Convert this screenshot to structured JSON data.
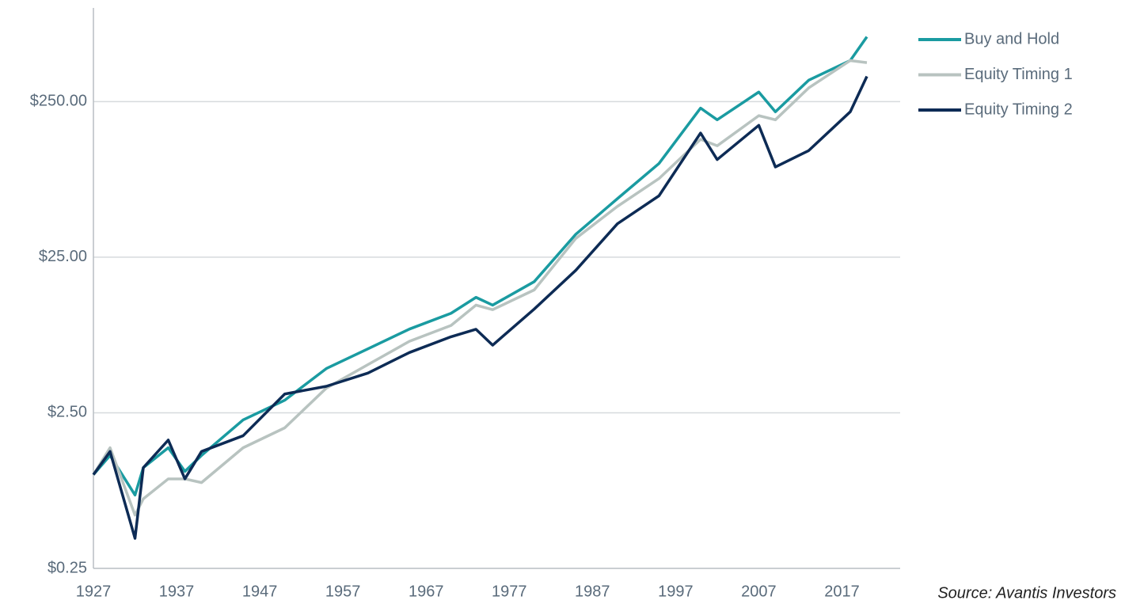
{
  "chart_data": {
    "type": "line",
    "source": "Source: Avantis Investors",
    "log_y": true,
    "grid": true,
    "legend": "top-right",
    "xlim": [
      1927,
      2024
    ],
    "xticks": [
      1927,
      1937,
      1947,
      1957,
      1967,
      1977,
      1987,
      1997,
      2007,
      2017
    ],
    "ylim": [
      0.25,
      1000
    ],
    "yticks": [
      {
        "value": 0.25,
        "label": "$0.25"
      },
      {
        "value": 2.5,
        "label": "$2.50"
      },
      {
        "value": 25,
        "label": "$25.00"
      },
      {
        "value": 250,
        "label": "$250.00"
      }
    ],
    "x": [
      1927,
      1929,
      1932,
      1933,
      1936,
      1938,
      1940,
      1945,
      1950,
      1955,
      1960,
      1965,
      1970,
      1973,
      1975,
      1980,
      1985,
      1990,
      1995,
      2000,
      2002,
      2007,
      2009,
      2013,
      2018,
      2020
    ],
    "series": [
      {
        "name": "Buy and Hold",
        "color": "#1a9ba1",
        "values": [
          1.0,
          1.33,
          0.74,
          1.11,
          1.49,
          1.05,
          1.33,
          2.25,
          3.01,
          4.81,
          6.44,
          8.63,
          10.9,
          13.8,
          12.3,
          17.4,
          35.1,
          59.4,
          100,
          227,
          191,
          288,
          215,
          343,
          459,
          652
        ]
      },
      {
        "name": "Equity Timing 1",
        "color": "#b8c3c0",
        "values": [
          1.0,
          1.49,
          0.55,
          0.7,
          0.94,
          0.94,
          0.89,
          1.49,
          2.0,
          3.6,
          5.1,
          7.2,
          9.1,
          12.3,
          11.5,
          15.4,
          33,
          53,
          80,
          143,
          130,
          203,
          191,
          306,
          459,
          445
        ]
      },
      {
        "name": "Equity Timing 2",
        "color": "#0d2b55",
        "values": [
          1.0,
          1.41,
          0.39,
          1.11,
          1.67,
          0.94,
          1.41,
          1.78,
          3.3,
          3.7,
          4.5,
          6.1,
          7.7,
          8.6,
          6.8,
          11.6,
          20.6,
          41,
          62,
          157,
          106,
          176,
          95,
          121,
          215,
          363
        ]
      }
    ]
  }
}
